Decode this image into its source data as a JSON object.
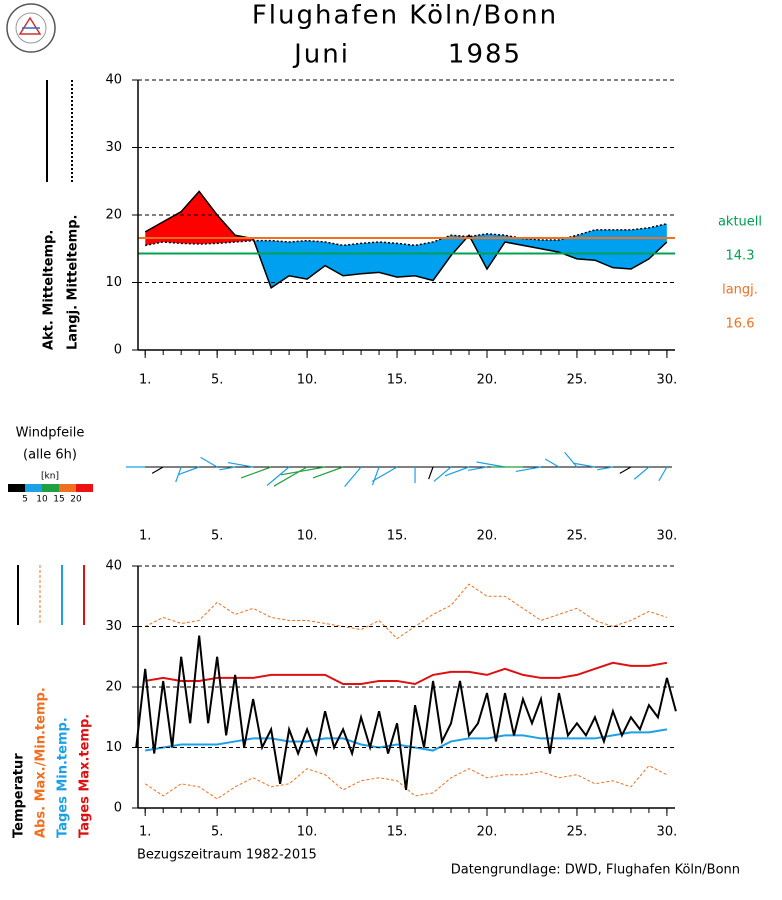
{
  "header": {
    "title": "Flughafen Köln/Bonn",
    "month": "Juni",
    "year": "1985"
  },
  "chart_data": [
    {
      "type": "area_diff",
      "x": [
        1,
        2,
        3,
        4,
        5,
        6,
        7,
        8,
        9,
        10,
        11,
        12,
        13,
        14,
        15,
        16,
        17,
        18,
        19,
        20,
        21,
        22,
        23,
        24,
        25,
        26,
        27,
        28,
        29,
        30
      ],
      "series": [
        {
          "name": "Akt. Mitteltemp.",
          "color": "#000000",
          "style": "solid",
          "values": [
            17.5,
            19,
            20.5,
            23.5,
            20,
            17,
            16.5,
            9.2,
            11,
            10.5,
            12.5,
            11,
            11.3,
            11.5,
            10.8,
            11,
            10.3,
            14,
            17,
            12,
            16,
            15.5,
            15,
            14.5,
            13.5,
            13.3,
            12.2,
            12,
            13.5,
            16
          ]
        },
        {
          "name": "Langj. Mitteltemp.",
          "color": "#000000",
          "style": "dotted",
          "values": [
            15.5,
            16,
            15.8,
            15.7,
            15.8,
            16,
            16.2,
            16.2,
            16,
            16.2,
            16,
            15.5,
            15.8,
            16,
            15.8,
            15.5,
            16,
            17,
            16.8,
            17.2,
            17,
            16.5,
            16.3,
            16.3,
            17,
            17.8,
            17.8,
            17.8,
            18.1,
            18.7
          ]
        }
      ],
      "fill_above": "#ff0000",
      "fill_below": "#00a0f0",
      "ref_lines": [
        {
          "name": "aktuell",
          "value": 14.3,
          "color": "#00a050"
        },
        {
          "name": "langj.",
          "value": 16.6,
          "color": "#f07020"
        }
      ],
      "xlim": [
        0.6,
        30.45
      ],
      "xticks": [
        {
          "value": 1,
          "label": "1."
        },
        {
          "value": 5,
          "label": "5."
        },
        {
          "value": 10,
          "label": "10."
        },
        {
          "value": 15,
          "label": "15."
        },
        {
          "value": 20,
          "label": "20."
        },
        {
          "value": 25,
          "label": "25."
        },
        {
          "value": 30,
          "label": "30."
        }
      ],
      "ylim": [
        0,
        40
      ],
      "yticks": [
        0,
        10,
        20,
        30,
        40
      ],
      "grid": true
    },
    {
      "type": "wind",
      "title": "Windpfeile",
      "subtitle": "(alle 6h)",
      "x": [
        1,
        2,
        3,
        4,
        5,
        6,
        7,
        8,
        9,
        10,
        11,
        12,
        13,
        14,
        15,
        16,
        17,
        18,
        19,
        20,
        21,
        22,
        23,
        24,
        25,
        26,
        27,
        28,
        29,
        30
      ],
      "speeds": [
        6,
        4,
        5,
        7,
        6,
        5,
        8,
        10,
        9,
        12,
        14,
        10,
        8,
        6,
        9,
        5,
        4,
        7,
        8,
        6,
        9,
        10,
        8,
        5,
        6,
        7,
        5,
        4,
        6,
        5
      ],
      "directions": [
        270,
        240,
        200,
        250,
        300,
        260,
        280,
        250,
        230,
        240,
        260,
        250,
        220,
        200,
        240,
        180,
        200,
        230,
        250,
        260,
        280,
        270,
        260,
        300,
        320,
        280,
        260,
        240,
        230,
        210
      ],
      "colorbar": {
        "unit": "[kn]",
        "ticks": [
          5,
          10,
          15,
          20
        ],
        "colors": [
          "#000000",
          "#1ea0e6",
          "#20a040",
          "#f07020",
          "#ee1111"
        ]
      },
      "xlim": [
        0.6,
        30.45
      ],
      "xticks": [
        {
          "value": 1,
          "label": "1."
        },
        {
          "value": 5,
          "label": "5."
        },
        {
          "value": 10,
          "label": "10."
        },
        {
          "value": 15,
          "label": "15."
        },
        {
          "value": 20,
          "label": "20."
        },
        {
          "value": 25,
          "label": "25."
        },
        {
          "value": 30,
          "label": "30."
        }
      ]
    },
    {
      "type": "line",
      "x": [
        1,
        2,
        3,
        4,
        5,
        6,
        7,
        8,
        9,
        10,
        11,
        12,
        13,
        14,
        15,
        16,
        17,
        18,
        19,
        20,
        21,
        22,
        23,
        24,
        25,
        26,
        27,
        28,
        29,
        30
      ],
      "series": [
        {
          "name": "Temperatur",
          "color": "#000000",
          "style": "solid",
          "width": 2,
          "x": [
            0.5,
            1,
            1.5,
            2,
            2.5,
            3,
            3.5,
            4,
            4.5,
            5,
            5.5,
            6,
            6.5,
            7,
            7.5,
            8,
            8.5,
            9,
            9.5,
            10,
            10.5,
            11,
            11.5,
            12,
            12.5,
            13,
            13.5,
            14,
            14.5,
            15,
            15.5,
            16,
            16.5,
            17,
            17.5,
            18,
            18.5,
            19,
            19.5,
            20,
            20.5,
            21,
            21.5,
            22,
            22.5,
            23,
            23.5,
            24,
            24.5,
            25,
            25.5,
            26,
            26.5,
            27,
            27.5,
            28,
            28.5,
            29,
            29.5,
            30,
            30.5
          ],
          "values": [
            10,
            23,
            9,
            21,
            10,
            25,
            14,
            28.5,
            14,
            25,
            12,
            22,
            10,
            18,
            10,
            13,
            4,
            13,
            9,
            13,
            9,
            16,
            10,
            13,
            9,
            15,
            10,
            16,
            9,
            14,
            3,
            17,
            10,
            21,
            11,
            14,
            21,
            12,
            14,
            19,
            11,
            19,
            12,
            18,
            14,
            18,
            9,
            19,
            12,
            14,
            12,
            15,
            11,
            16,
            12,
            15,
            13,
            17,
            15,
            21.5,
            16
          ]
        },
        {
          "name": "Abs. Max./Min.temp.",
          "color": "#f07020",
          "style": "dashed",
          "width": 1,
          "values": [
            30,
            31.5,
            30.5,
            31,
            34,
            32,
            33,
            31.5,
            31,
            31,
            30.5,
            30,
            29.5,
            31,
            28,
            30,
            32,
            33.5,
            37,
            35,
            35,
            33,
            31,
            32,
            33,
            31,
            30,
            31,
            32.5,
            31.5
          ]
        },
        {
          "name": "Abs. Max./Min.temp.",
          "color": "#f07020",
          "style": "dashed",
          "width": 1,
          "values": [
            4,
            2,
            4,
            3.5,
            1.5,
            3.5,
            5,
            3.5,
            4,
            6.5,
            5.5,
            3,
            4.5,
            5,
            4.5,
            2,
            2.5,
            5,
            6.5,
            5,
            5.5,
            5.5,
            6,
            5,
            5.5,
            4,
            4.5,
            3.5,
            7,
            5.5
          ]
        },
        {
          "name": "Tages Min.temp.",
          "color": "#1ea0e6",
          "style": "solid",
          "width": 2,
          "values": [
            9.5,
            10,
            10.5,
            10.5,
            10.5,
            11,
            11.5,
            11.5,
            11,
            11,
            11.5,
            11.5,
            10.5,
            10,
            10.5,
            10,
            9.5,
            11,
            11.5,
            11.5,
            12,
            12,
            11.5,
            11.5,
            11.5,
            11.5,
            12,
            12.5,
            12.5,
            13
          ]
        },
        {
          "name": "Tages Max.temp.",
          "color": "#dd1111",
          "style": "solid",
          "width": 2,
          "values": [
            21,
            21.5,
            21,
            21,
            21.5,
            21.5,
            21.5,
            22,
            22,
            22,
            22,
            20.5,
            20.5,
            21,
            21,
            20.5,
            22,
            22.5,
            22.5,
            22,
            23,
            22,
            21.5,
            21.5,
            22,
            23,
            24,
            23.5,
            23.5,
            24
          ]
        }
      ],
      "xlim": [
        0.6,
        30.45
      ],
      "xticks": [
        {
          "value": 1,
          "label": "1."
        },
        {
          "value": 5,
          "label": "5."
        },
        {
          "value": 10,
          "label": "10."
        },
        {
          "value": 15,
          "label": "15."
        },
        {
          "value": 20,
          "label": "20."
        },
        {
          "value": 25,
          "label": "25."
        },
        {
          "value": 30,
          "label": "30."
        }
      ],
      "ylim": [
        0,
        40
      ],
      "yticks": [
        0,
        10,
        20,
        30,
        40
      ],
      "grid": true,
      "footnote": "Bezugszeitraum 1982-2015",
      "source": "Datengrundlage: DWD, Flughafen Köln/Bonn"
    }
  ]
}
